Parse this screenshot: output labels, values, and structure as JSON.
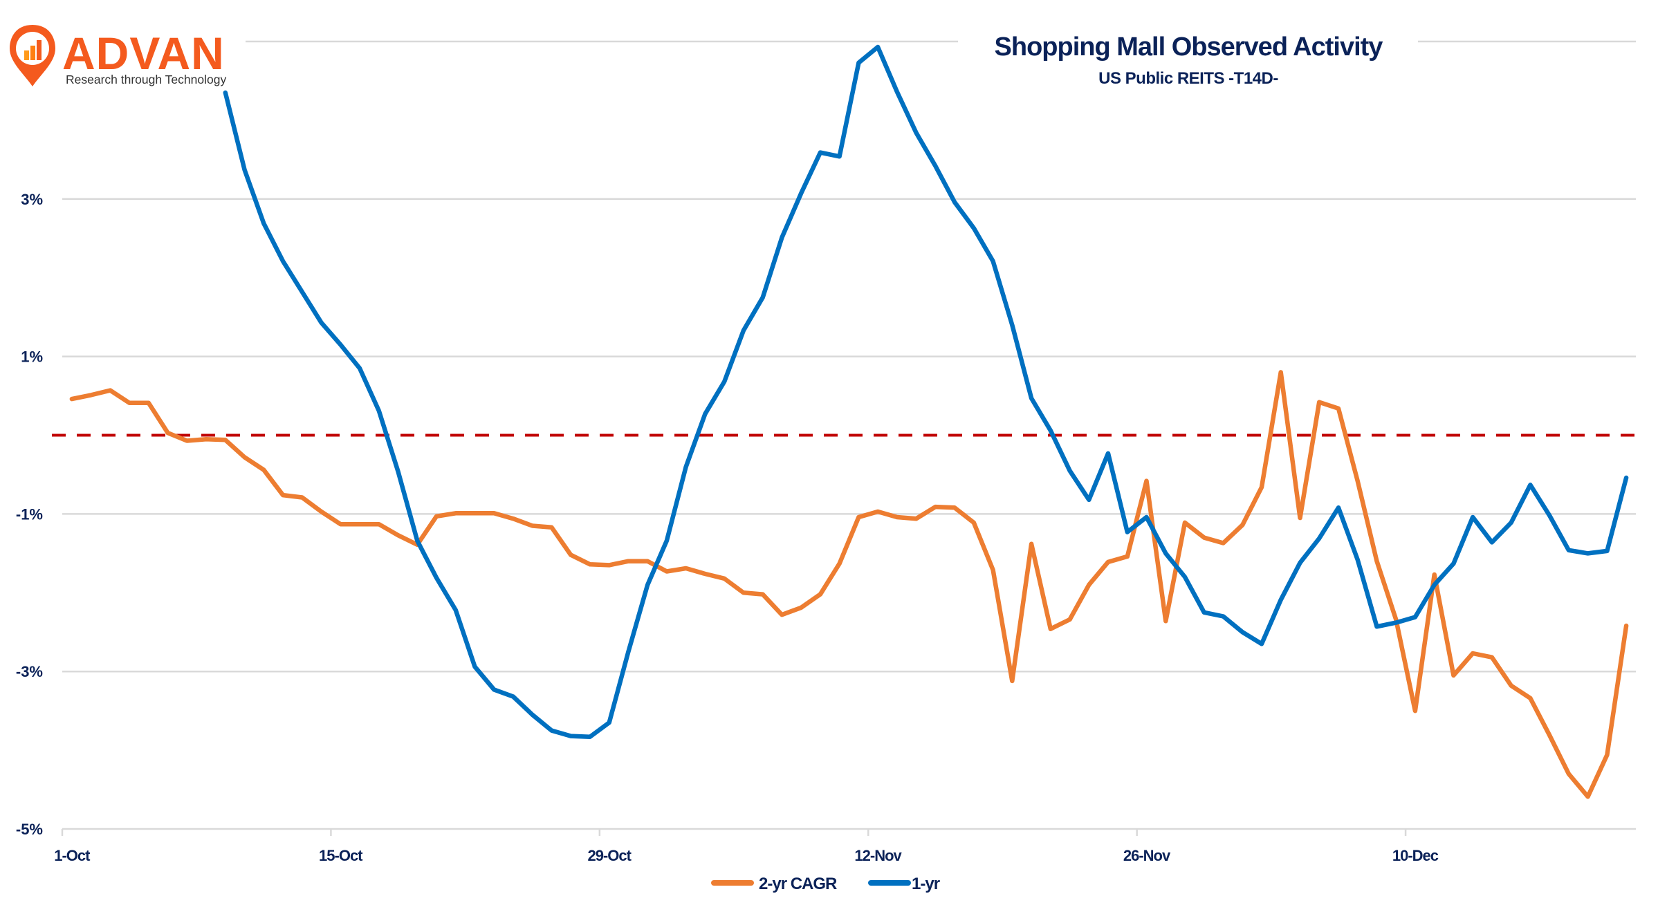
{
  "logo": {
    "brand": "ADVAN",
    "tagline": "Research through Technology",
    "color": "#f45a1e"
  },
  "chart_data": {
    "type": "line",
    "title": "Shopping Mall Observed Activity",
    "subtitle": "US Public REITS -T14D-",
    "xlabel": "",
    "ylabel": "",
    "ylim": [
      -5,
      5
    ],
    "ytick_values": [
      3,
      1,
      -1,
      -3,
      -5
    ],
    "ytick_labels": [
      "3%",
      "1%",
      "-1%",
      "-3%",
      "-5%"
    ],
    "gridline_values": [
      5,
      3,
      1,
      -1,
      -3,
      -5
    ],
    "grid": true,
    "xtick_labels": [
      "1-Oct",
      "15-Oct",
      "29-Oct",
      "12-Nov",
      "26-Nov",
      "10-Dec"
    ],
    "xtick_indices": [
      0,
      14,
      28,
      42,
      56,
      70
    ],
    "x_range_days": 82,
    "reference_line": {
      "value": 0,
      "style": "dashed",
      "color": "#c00000"
    },
    "legend_position": "bottom",
    "x": [
      "1-Oct",
      "2-Oct",
      "3-Oct",
      "4-Oct",
      "5-Oct",
      "6-Oct",
      "7-Oct",
      "8-Oct",
      "9-Oct",
      "10-Oct",
      "11-Oct",
      "12-Oct",
      "13-Oct",
      "14-Oct",
      "15-Oct",
      "16-Oct",
      "17-Oct",
      "18-Oct",
      "19-Oct",
      "20-Oct",
      "21-Oct",
      "22-Oct",
      "23-Oct",
      "24-Oct",
      "25-Oct",
      "26-Oct",
      "27-Oct",
      "28-Oct",
      "29-Oct",
      "30-Oct",
      "31-Oct",
      "1-Nov",
      "2-Nov",
      "3-Nov",
      "4-Nov",
      "5-Nov",
      "6-Nov",
      "7-Nov",
      "8-Nov",
      "9-Nov",
      "10-Nov",
      "11-Nov",
      "12-Nov",
      "13-Nov",
      "14-Nov",
      "15-Nov",
      "16-Nov",
      "17-Nov",
      "18-Nov",
      "19-Nov",
      "20-Nov",
      "21-Nov",
      "22-Nov",
      "23-Nov",
      "24-Nov",
      "25-Nov",
      "26-Nov",
      "27-Nov",
      "28-Nov",
      "29-Nov",
      "30-Nov",
      "1-Dec",
      "2-Dec",
      "3-Dec",
      "4-Dec",
      "5-Dec",
      "6-Dec",
      "7-Dec",
      "8-Dec",
      "9-Dec",
      "10-Dec",
      "11-Dec",
      "12-Dec",
      "13-Dec",
      "14-Dec",
      "15-Dec",
      "16-Dec",
      "17-Dec",
      "18-Dec",
      "19-Dec",
      "20-Dec",
      "21-Dec"
    ],
    "series": [
      {
        "name": "2-yr CAGR",
        "color": "#ed7d31",
        "values": [
          0.46,
          0.51,
          0.57,
          0.41,
          0.41,
          0.03,
          -0.07,
          -0.05,
          -0.06,
          -0.28,
          -0.44,
          -0.76,
          -0.79,
          -0.97,
          -1.13,
          -1.13,
          -1.13,
          -1.27,
          -1.39,
          -1.03,
          -0.99,
          -0.99,
          -0.99,
          -1.06,
          -1.15,
          -1.17,
          -1.52,
          -1.64,
          -1.65,
          -1.6,
          -1.6,
          -1.73,
          -1.69,
          -1.76,
          -1.82,
          -2.0,
          -2.02,
          -2.28,
          -2.19,
          -2.02,
          -1.63,
          -1.04,
          -0.97,
          -1.04,
          -1.06,
          -0.91,
          -0.92,
          -1.11,
          -1.71,
          -3.12,
          -1.38,
          -2.46,
          -2.34,
          -1.9,
          -1.61,
          -1.54,
          -0.58,
          -2.36,
          -1.11,
          -1.3,
          -1.37,
          -1.14,
          -0.66,
          0.8,
          -1.05,
          0.42,
          0.34,
          -0.58,
          -1.6,
          -2.34,
          -3.5,
          -1.77,
          -3.05,
          -2.77,
          -2.82,
          -3.18,
          -3.34,
          -3.81,
          -4.3,
          -4.59,
          -4.06,
          -2.42
        ]
      },
      {
        "name": "1-yr",
        "color": "#0070c0",
        "values": [
          null,
          null,
          null,
          null,
          null,
          null,
          null,
          null,
          4.35,
          3.37,
          2.69,
          2.21,
          1.82,
          1.43,
          1.15,
          0.85,
          0.31,
          -0.46,
          -1.34,
          -1.81,
          -2.22,
          -2.94,
          -3.23,
          -3.32,
          -3.55,
          -3.75,
          -3.82,
          -3.83,
          -3.65,
          -2.75,
          -1.9,
          -1.34,
          -0.4,
          0.27,
          0.68,
          1.33,
          1.75,
          2.51,
          3.07,
          3.59,
          3.54,
          4.73,
          4.93,
          4.36,
          3.84,
          3.42,
          2.96,
          2.63,
          2.21,
          1.4,
          0.47,
          0.06,
          -0.45,
          -0.82,
          -0.23,
          -1.23,
          -1.04,
          -1.5,
          -1.8,
          -2.25,
          -2.3,
          -2.5,
          -2.65,
          -2.09,
          -1.62,
          -1.31,
          -0.92,
          -1.58,
          -2.43,
          -2.38,
          -2.31,
          -1.9,
          -1.63,
          -1.04,
          -1.36,
          -1.11,
          -0.63,
          -1.02,
          -1.46,
          -1.5,
          -1.47,
          -0.54
        ]
      }
    ]
  }
}
